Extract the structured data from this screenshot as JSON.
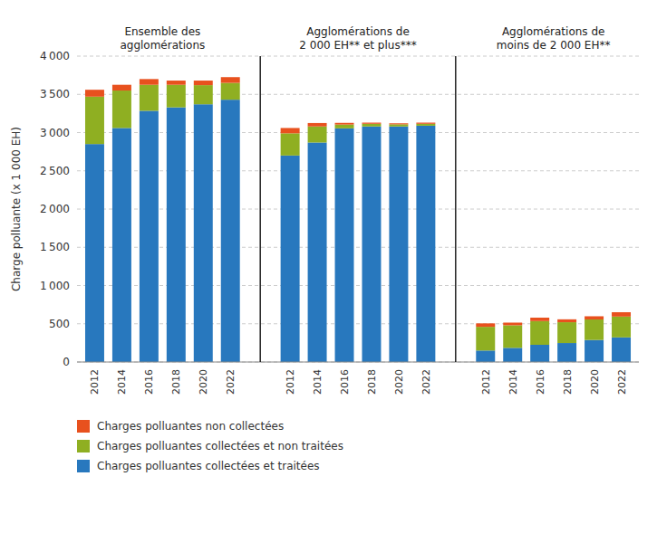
{
  "chart_data": {
    "type": "bar",
    "stacked": true,
    "ylabel": "Charge polluante (x 1 000 EH)",
    "categories": [
      "2012",
      "2014",
      "2016",
      "2018",
      "2020",
      "2022",
      "2012",
      "2014",
      "2016",
      "2018",
      "2020",
      "2022",
      "2012",
      "2014",
      "2016",
      "2018",
      "2020",
      "2022"
    ],
    "series": [
      {
        "name": "Charges polluantes collectées et traitées",
        "color": "#2878BE",
        "values": [
          2850,
          3060,
          3285,
          3330,
          3370,
          3430,
          2700,
          2870,
          3055,
          3080,
          3080,
          3090,
          150,
          185,
          225,
          248,
          288,
          322
        ]
      },
      {
        "name": "Charges polluantes collectées et non traitées",
        "color": "#8FAF22",
        "values": [
          620,
          490,
          340,
          295,
          250,
          220,
          290,
          210,
          50,
          35,
          28,
          25,
          310,
          295,
          310,
          272,
          268,
          272
        ]
      },
      {
        "name": "Charges polluantes non collectées",
        "color": "#E8511E",
        "values": [
          90,
          75,
          75,
          55,
          60,
          75,
          70,
          45,
          22,
          15,
          13,
          15,
          45,
          35,
          45,
          38,
          42,
          57
        ]
      }
    ],
    "annotations": [
      {
        "lines": [
          "Ensemble des",
          "agglomérations"
        ]
      },
      {
        "lines": [
          "Agglomérations de",
          "2 000 EH** et plus***"
        ]
      },
      {
        "lines": [
          "Agglomérations de",
          "moins de 2 000 EH**"
        ]
      }
    ],
    "ylim": [
      0,
      4000
    ],
    "yticks": [
      0,
      500,
      {
        "value": 1000,
        "label": "1 000"
      },
      {
        "value": 1500,
        "label": "1 500"
      },
      {
        "value": 2000,
        "label": "2 000"
      },
      {
        "value": 2500,
        "label": "2 500"
      },
      {
        "value": 3000,
        "label": "3 000"
      },
      {
        "value": 3500,
        "label": "3 500"
      },
      {
        "value": 4000,
        "label": "4 000"
      }
    ],
    "grid": true,
    "legend": "bottom"
  }
}
